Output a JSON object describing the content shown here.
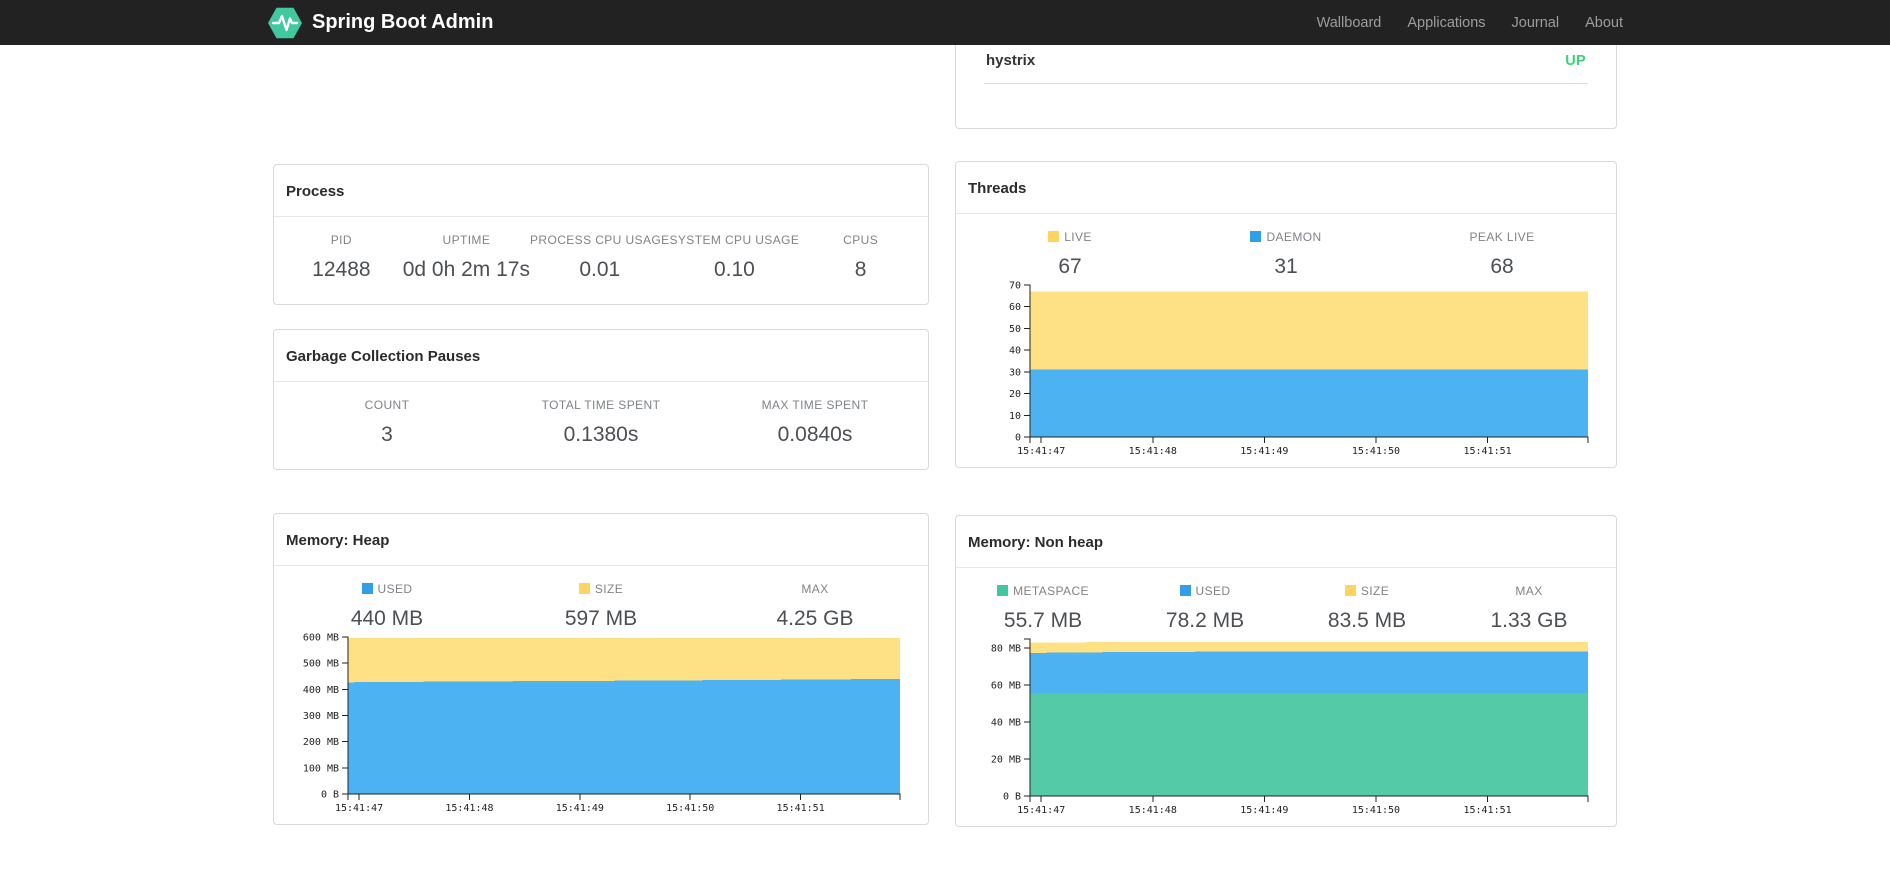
{
  "navbar": {
    "brand": "Spring Boot Admin",
    "logo_color": "#41c89e",
    "background": "#222222",
    "items": [
      {
        "label": "Wallboard"
      },
      {
        "label": "Applications"
      },
      {
        "label": "Journal"
      },
      {
        "label": "About"
      }
    ]
  },
  "application": {
    "name": "hystrix",
    "status": "UP",
    "status_color": "#38d475"
  },
  "panels": {
    "process": {
      "title": "Process",
      "metrics": [
        {
          "label": "PID",
          "value": "12488"
        },
        {
          "label": "UPTIME",
          "value": "0d 0h 2m 17s"
        },
        {
          "label": "PROCESS CPU USAGE",
          "value": "0.01"
        },
        {
          "label": "SYSTEM CPU USAGE",
          "value": "0.10"
        },
        {
          "label": "CPUS",
          "value": "8"
        }
      ]
    },
    "gc": {
      "title": "Garbage Collection Pauses",
      "metrics": [
        {
          "label": "COUNT",
          "value": "3"
        },
        {
          "label": "TOTAL TIME SPENT",
          "value": "0.1380s"
        },
        {
          "label": "MAX TIME SPENT",
          "value": "0.0840s"
        }
      ]
    },
    "threads": {
      "title": "Threads",
      "metrics": [
        {
          "label": "LIVE",
          "value": "67",
          "swatch": "#fdd45f"
        },
        {
          "label": "DAEMON",
          "value": "31",
          "swatch": "#2f9fe8"
        },
        {
          "label": "PEAK LIVE",
          "value": "68"
        }
      ]
    },
    "heap": {
      "title": "Memory: Heap",
      "metrics": [
        {
          "label": "USED",
          "value": "440 MB",
          "swatch": "#2f9fe8"
        },
        {
          "label": "SIZE",
          "value": "597 MB",
          "swatch": "#fdd45f"
        },
        {
          "label": "MAX",
          "value": "4.25 GB"
        }
      ]
    },
    "nonheap": {
      "title": "Memory: Non heap",
      "metrics": [
        {
          "label": "METASPACE",
          "value": "55.7 MB",
          "swatch": "#3ec7a0"
        },
        {
          "label": "USED",
          "value": "78.2 MB",
          "swatch": "#2f9fe8"
        },
        {
          "label": "SIZE",
          "value": "83.5 MB",
          "swatch": "#fdd45f"
        },
        {
          "label": "MAX",
          "value": "1.33 GB"
        }
      ]
    }
  },
  "chart_data": [
    {
      "id": "threads",
      "type": "area",
      "title": "Threads",
      "x_ticks": [
        "15:41:47",
        "15:41:48",
        "15:41:49",
        "15:41:50",
        "15:41:51"
      ],
      "ylim": [
        0,
        70
      ],
      "grid": false,
      "legend_position": "top",
      "y_ticks": [
        {
          "v": 0,
          "label": "0"
        },
        {
          "v": 10,
          "label": "10"
        },
        {
          "v": 20,
          "label": "20"
        },
        {
          "v": 30,
          "label": "30"
        },
        {
          "v": 40,
          "label": "40"
        },
        {
          "v": 50,
          "label": "50"
        },
        {
          "v": 60,
          "label": "60"
        },
        {
          "v": 70,
          "label": "70"
        }
      ],
      "series": [
        {
          "name": "LIVE",
          "fill": "#fde184",
          "values": [
            67,
            67,
            67,
            67,
            67,
            67
          ]
        },
        {
          "name": "DAEMON",
          "fill": "#4db2f1",
          "values": [
            31,
            31,
            31,
            31,
            31,
            31
          ]
        }
      ]
    },
    {
      "id": "heap",
      "type": "area",
      "title": "Memory: Heap",
      "x_ticks": [
        "15:41:47",
        "15:41:48",
        "15:41:49",
        "15:41:50",
        "15:41:51"
      ],
      "ylim": [
        0,
        600
      ],
      "grid": false,
      "legend_position": "top",
      "y_ticks": [
        {
          "v": 0,
          "label": "0 B"
        },
        {
          "v": 100,
          "label": "100 MB"
        },
        {
          "v": 200,
          "label": "200 MB"
        },
        {
          "v": 300,
          "label": "300 MB"
        },
        {
          "v": 400,
          "label": "400 MB"
        },
        {
          "v": 500,
          "label": "500 MB"
        },
        {
          "v": 600,
          "label": "600 MB"
        }
      ],
      "series": [
        {
          "name": "USED",
          "fill": "#4db2f1",
          "values": [
            427,
            430,
            432,
            434,
            437,
            440
          ]
        },
        {
          "name": "SIZE",
          "fill": "#fde184",
          "values": [
            597,
            597,
            597,
            597,
            597,
            597
          ]
        }
      ]
    },
    {
      "id": "nonheap",
      "type": "area",
      "title": "Memory: Non heap",
      "x_ticks": [
        "15:41:47",
        "15:41:48",
        "15:41:49",
        "15:41:50",
        "15:41:51"
      ],
      "ylim": [
        0,
        85
      ],
      "grid": false,
      "legend_position": "top",
      "y_ticks": [
        {
          "v": 0,
          "label": "0 B"
        },
        {
          "v": 20,
          "label": "20 MB"
        },
        {
          "v": 40,
          "label": "40 MB"
        },
        {
          "v": 60,
          "label": "60 MB"
        },
        {
          "v": 80,
          "label": "80 MB"
        }
      ],
      "series": [
        {
          "name": "METASPACE",
          "fill": "#54cba6",
          "values": [
            55.5,
            55.7,
            55.7,
            55.7,
            55.7,
            55.7
          ]
        },
        {
          "name": "USED",
          "fill": "#4db2f1",
          "values": [
            77.5,
            78.0,
            78.2,
            78.2,
            78.2,
            78.2
          ]
        },
        {
          "name": "SIZE",
          "fill": "#fde184",
          "values": [
            83.0,
            83.5,
            83.5,
            83.5,
            83.5,
            83.5
          ]
        }
      ]
    }
  ]
}
